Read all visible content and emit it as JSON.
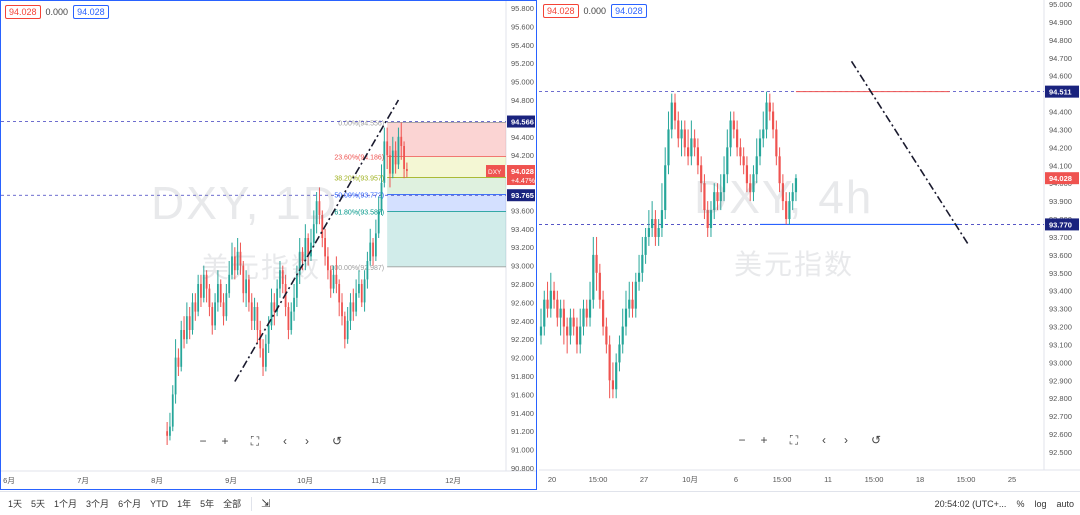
{
  "left": {
    "legend": {
      "open": "94.028",
      "change": "0.000",
      "close": "94.028"
    },
    "watermark": {
      "symbol": "DXY, 1D",
      "name": "美元指数"
    },
    "yaxis": {
      "labels": [
        "95.800",
        "95.600",
        "95.400",
        "95.200",
        "95.000",
        "94.800",
        "94.600",
        "94.400",
        "94.200",
        "94.000",
        "93.800",
        "93.600",
        "93.400",
        "93.200",
        "93.000",
        "92.800",
        "92.600",
        "92.400",
        "92.200",
        "92.000",
        "91.800",
        "91.600",
        "91.400",
        "91.200",
        "91.000",
        "90.800"
      ],
      "min": 90.8,
      "max": 95.8
    },
    "xaxis": {
      "labels": [
        "6月",
        "7月",
        "8月",
        "9月",
        "10月",
        "11月",
        "12月"
      ]
    },
    "price_tags": {
      "upper": "94.566",
      "current_symbol": "DXY",
      "current": "94.028",
      "current_change": "+4.47%",
      "lower": "93.765"
    },
    "fib": [
      {
        "label": "0.00%(94.556)",
        "price": 94.556
      },
      {
        "label": "23.60%(94.186)",
        "price": 94.186
      },
      {
        "label": "38.20%(93.957)",
        "price": 93.957
      },
      {
        "label": "50.00%(93.772)",
        "price": 93.772
      },
      {
        "label": "61.80%(93.587)",
        "price": 93.587
      },
      {
        "label": "100.00%(92.987)",
        "price": 92.987
      }
    ],
    "hlines": [
      94.566,
      93.765
    ],
    "trendline": {
      "from": {
        "i": 68,
        "p": 91.74
      },
      "to": {
        "i": 126,
        "p": 94.8
      }
    },
    "ohlc": [
      [
        91.2,
        91.15,
        91.3,
        91.05
      ],
      [
        91.15,
        91.25,
        91.4,
        91.1
      ],
      [
        91.25,
        91.6,
        91.7,
        91.2
      ],
      [
        91.6,
        92.0,
        92.2,
        91.5
      ],
      [
        92.0,
        91.9,
        92.1,
        91.8
      ],
      [
        91.9,
        92.3,
        92.4,
        91.85
      ],
      [
        92.3,
        92.2,
        92.45,
        92.1
      ],
      [
        92.2,
        92.45,
        92.6,
        92.15
      ],
      [
        92.45,
        92.3,
        92.55,
        92.2
      ],
      [
        92.3,
        92.6,
        92.7,
        92.25
      ],
      [
        92.6,
        92.5,
        92.7,
        92.4
      ],
      [
        92.5,
        92.8,
        92.9,
        92.45
      ],
      [
        92.8,
        92.65,
        92.9,
        92.55
      ],
      [
        92.65,
        92.9,
        93.0,
        92.6
      ],
      [
        92.9,
        92.75,
        92.95,
        92.6
      ],
      [
        92.75,
        92.55,
        92.8,
        92.45
      ],
      [
        92.55,
        92.35,
        92.6,
        92.25
      ],
      [
        92.35,
        92.6,
        92.7,
        92.3
      ],
      [
        92.6,
        92.8,
        92.95,
        92.5
      ],
      [
        92.8,
        92.6,
        92.85,
        92.55
      ],
      [
        92.6,
        92.45,
        92.7,
        92.35
      ],
      [
        92.45,
        92.7,
        92.8,
        92.4
      ],
      [
        92.7,
        92.9,
        93.05,
        92.65
      ],
      [
        92.9,
        93.1,
        93.25,
        92.85
      ],
      [
        93.1,
        92.95,
        93.2,
        92.85
      ],
      [
        92.95,
        93.15,
        93.3,
        92.9
      ],
      [
        93.15,
        93.0,
        93.25,
        92.9
      ],
      [
        93.0,
        92.7,
        93.05,
        92.6
      ],
      [
        92.7,
        92.85,
        92.95,
        92.55
      ],
      [
        92.85,
        92.6,
        92.9,
        92.5
      ],
      [
        92.6,
        92.4,
        92.7,
        92.3
      ],
      [
        92.4,
        92.55,
        92.65,
        92.3
      ],
      [
        92.55,
        92.3,
        92.6,
        92.15
      ],
      [
        92.3,
        92.1,
        92.4,
        92.0
      ],
      [
        92.1,
        91.9,
        92.2,
        91.8
      ],
      [
        91.9,
        92.15,
        92.25,
        91.85
      ],
      [
        92.15,
        92.35,
        92.45,
        92.05
      ],
      [
        92.35,
        92.6,
        92.75,
        92.3
      ],
      [
        92.6,
        92.5,
        92.7,
        92.35
      ],
      [
        92.5,
        92.75,
        92.85,
        92.45
      ],
      [
        92.75,
        92.95,
        93.05,
        92.65
      ],
      [
        92.95,
        92.8,
        93.0,
        92.7
      ],
      [
        92.8,
        92.55,
        92.9,
        92.45
      ],
      [
        92.55,
        92.3,
        92.6,
        92.2
      ],
      [
        92.3,
        92.5,
        92.6,
        92.25
      ],
      [
        92.5,
        92.65,
        92.8,
        92.4
      ],
      [
        92.65,
        92.9,
        93.0,
        92.55
      ],
      [
        92.9,
        93.15,
        93.3,
        92.8
      ],
      [
        93.15,
        93.05,
        93.2,
        92.95
      ],
      [
        93.05,
        93.3,
        93.45,
        92.95
      ],
      [
        93.3,
        93.1,
        93.35,
        93.0
      ],
      [
        93.1,
        93.25,
        93.4,
        93.05
      ],
      [
        93.25,
        93.45,
        93.6,
        93.2
      ],
      [
        93.45,
        93.7,
        93.8,
        93.35
      ],
      [
        93.7,
        93.55,
        93.85,
        93.45
      ],
      [
        93.55,
        93.3,
        93.6,
        93.2
      ],
      [
        93.3,
        93.1,
        93.4,
        93.0
      ],
      [
        93.1,
        92.95,
        93.2,
        92.85
      ],
      [
        92.95,
        92.75,
        93.0,
        92.65
      ],
      [
        92.75,
        92.9,
        93.0,
        92.7
      ],
      [
        92.9,
        92.8,
        93.1,
        92.7
      ],
      [
        92.8,
        92.6,
        92.85,
        92.45
      ],
      [
        92.6,
        92.45,
        92.7,
        92.35
      ],
      [
        92.45,
        92.2,
        92.5,
        92.1
      ],
      [
        92.2,
        92.4,
        92.55,
        92.15
      ],
      [
        92.4,
        92.6,
        92.7,
        92.3
      ],
      [
        92.6,
        92.5,
        92.75,
        92.4
      ],
      [
        92.5,
        92.7,
        92.85,
        92.45
      ],
      [
        92.7,
        92.8,
        92.95,
        92.65
      ],
      [
        92.8,
        92.6,
        92.85,
        92.55
      ],
      [
        92.6,
        92.85,
        92.95,
        92.5
      ],
      [
        92.85,
        93.05,
        93.15,
        92.75
      ],
      [
        93.05,
        93.25,
        93.4,
        93.0
      ],
      [
        93.25,
        93.1,
        93.3,
        93.0
      ],
      [
        93.1,
        93.35,
        93.5,
        93.05
      ],
      [
        93.35,
        93.6,
        93.75,
        93.3
      ],
      [
        93.6,
        93.9,
        94.1,
        93.55
      ],
      [
        93.9,
        94.35,
        94.5,
        93.85
      ],
      [
        94.35,
        94.2,
        94.5,
        94.05
      ],
      [
        94.2,
        94.0,
        94.3,
        93.85
      ],
      [
        94.0,
        94.25,
        94.4,
        93.95
      ],
      [
        94.25,
        94.1,
        94.35,
        94.0
      ],
      [
        94.1,
        94.4,
        94.5,
        94.05
      ],
      [
        94.4,
        94.3,
        94.556,
        94.15
      ],
      [
        94.3,
        94.05,
        94.35,
        93.95
      ],
      [
        94.05,
        94.028,
        94.12,
        93.96
      ]
    ]
  },
  "right": {
    "legend": {
      "open": "94.028",
      "change": "0.000",
      "close": "94.028"
    },
    "watermark": {
      "symbol": "DXY, 4h",
      "name": "美元指数"
    },
    "yaxis": {
      "labels": [
        "95.000",
        "94.900",
        "94.800",
        "94.700",
        "94.600",
        "94.500",
        "94.400",
        "94.300",
        "94.200",
        "94.100",
        "94.000",
        "93.900",
        "93.800",
        "93.700",
        "93.600",
        "93.500",
        "93.400",
        "93.300",
        "93.200",
        "93.100",
        "93.000",
        "92.900",
        "92.800",
        "92.700",
        "92.600",
        "92.500"
      ],
      "min": 92.5,
      "max": 95.0
    },
    "xaxis": {
      "labels": [
        "20",
        "15:00",
        "27",
        "10月",
        "6",
        "15:00",
        "11",
        "15:00",
        "18",
        "15:00",
        "25"
      ]
    },
    "price_tags": {
      "upper": "94.511",
      "current": "94.028",
      "lower": "93.770"
    },
    "hlines": [
      94.511,
      93.77
    ],
    "red_segment": {
      "from": {
        "i": 78,
        "p": 94.511
      },
      "to": {
        "i": 125,
        "p": 94.511
      }
    },
    "blue_segment": {
      "from": {
        "i": 67,
        "p": 93.77
      },
      "to": {
        "i": 128,
        "p": 93.77
      }
    },
    "trendline": {
      "from": {
        "i": 95,
        "p": 94.68
      },
      "to": {
        "i": 131,
        "p": 93.65
      }
    },
    "ohlc": [
      [
        93.15,
        93.2,
        93.3,
        93.1
      ],
      [
        93.2,
        93.35,
        93.4,
        93.15
      ],
      [
        93.35,
        93.3,
        93.45,
        93.25
      ],
      [
        93.3,
        93.4,
        93.5,
        93.25
      ],
      [
        93.4,
        93.35,
        93.45,
        93.3
      ],
      [
        93.35,
        93.25,
        93.4,
        93.2
      ],
      [
        93.25,
        93.3,
        93.35,
        93.15
      ],
      [
        93.3,
        93.2,
        93.35,
        93.1
      ],
      [
        93.2,
        93.15,
        93.25,
        93.05
      ],
      [
        93.15,
        93.25,
        93.3,
        93.1
      ],
      [
        93.25,
        93.2,
        93.3,
        93.15
      ],
      [
        93.2,
        93.1,
        93.25,
        93.05
      ],
      [
        93.1,
        93.2,
        93.3,
        93.05
      ],
      [
        93.2,
        93.3,
        93.35,
        93.15
      ],
      [
        93.3,
        93.25,
        93.35,
        93.2
      ],
      [
        93.25,
        93.35,
        93.45,
        93.2
      ],
      [
        93.35,
        93.6,
        93.7,
        93.3
      ],
      [
        93.6,
        93.5,
        93.7,
        93.4
      ],
      [
        93.5,
        93.35,
        93.55,
        93.3
      ],
      [
        93.35,
        93.2,
        93.4,
        93.15
      ],
      [
        93.2,
        93.1,
        93.25,
        93.05
      ],
      [
        93.1,
        92.9,
        93.15,
        92.8
      ],
      [
        92.9,
        92.85,
        93.0,
        92.8
      ],
      [
        92.85,
        93.0,
        93.05,
        92.8
      ],
      [
        93.0,
        93.1,
        93.15,
        92.95
      ],
      [
        93.1,
        93.2,
        93.3,
        93.05
      ],
      [
        93.2,
        93.3,
        93.4,
        93.15
      ],
      [
        93.3,
        93.35,
        93.45,
        93.25
      ],
      [
        93.35,
        93.3,
        93.45,
        93.25
      ],
      [
        93.3,
        93.45,
        93.5,
        93.25
      ],
      [
        93.45,
        93.5,
        93.6,
        93.4
      ],
      [
        93.5,
        93.6,
        93.7,
        93.45
      ],
      [
        93.6,
        93.7,
        93.75,
        93.55
      ],
      [
        93.7,
        93.75,
        93.85,
        93.65
      ],
      [
        93.75,
        93.8,
        93.9,
        93.7
      ],
      [
        93.8,
        93.7,
        93.85,
        93.65
      ],
      [
        93.7,
        93.75,
        93.8,
        93.65
      ],
      [
        93.75,
        93.85,
        94.0,
        93.7
      ],
      [
        93.85,
        94.1,
        94.2,
        93.8
      ],
      [
        94.1,
        94.3,
        94.4,
        94.05
      ],
      [
        94.3,
        94.45,
        94.5,
        94.25
      ],
      [
        94.45,
        94.35,
        94.5,
        94.3
      ],
      [
        94.35,
        94.25,
        94.4,
        94.2
      ],
      [
        94.25,
        94.3,
        94.35,
        94.15
      ],
      [
        94.3,
        94.2,
        94.35,
        94.15
      ],
      [
        94.2,
        94.15,
        94.3,
        94.1
      ],
      [
        94.15,
        94.25,
        94.35,
        94.1
      ],
      [
        94.25,
        94.2,
        94.3,
        94.15
      ],
      [
        94.2,
        94.1,
        94.25,
        94.05
      ],
      [
        94.1,
        94.0,
        94.15,
        93.95
      ],
      [
        94.0,
        93.85,
        94.05,
        93.8
      ],
      [
        93.85,
        93.75,
        93.9,
        93.7
      ],
      [
        93.75,
        93.85,
        93.9,
        93.7
      ],
      [
        93.85,
        93.95,
        94.0,
        93.8
      ],
      [
        93.95,
        93.9,
        94.0,
        93.85
      ],
      [
        93.9,
        93.95,
        94.05,
        93.85
      ],
      [
        93.95,
        94.05,
        94.15,
        93.9
      ],
      [
        94.05,
        94.2,
        94.3,
        94.0
      ],
      [
        94.2,
        94.35,
        94.4,
        94.15
      ],
      [
        94.35,
        94.3,
        94.4,
        94.25
      ],
      [
        94.3,
        94.2,
        94.35,
        94.15
      ],
      [
        94.2,
        94.15,
        94.25,
        94.1
      ],
      [
        94.15,
        94.1,
        94.2,
        94.05
      ],
      [
        94.1,
        94.0,
        94.15,
        93.95
      ],
      [
        94.0,
        93.95,
        94.05,
        93.9
      ],
      [
        93.95,
        94.05,
        94.1,
        93.9
      ],
      [
        94.05,
        94.15,
        94.25,
        94.0
      ],
      [
        94.15,
        94.25,
        94.3,
        94.1
      ],
      [
        94.25,
        94.3,
        94.4,
        94.2
      ],
      [
        94.3,
        94.45,
        94.511,
        94.25
      ],
      [
        94.45,
        94.4,
        94.5,
        94.35
      ],
      [
        94.4,
        94.3,
        94.45,
        94.25
      ],
      [
        94.3,
        94.15,
        94.35,
        94.1
      ],
      [
        94.15,
        94.0,
        94.2,
        93.95
      ],
      [
        94.0,
        93.9,
        94.05,
        93.85
      ],
      [
        93.9,
        93.8,
        93.95,
        93.77
      ],
      [
        93.8,
        93.9,
        93.95,
        93.77
      ],
      [
        93.9,
        93.95,
        94.0,
        93.85
      ],
      [
        93.95,
        94.028,
        94.05,
        93.9
      ]
    ]
  },
  "bottom_bar": {
    "ranges": [
      "1天",
      "5天",
      "1个月",
      "3个月",
      "6个月",
      "YTD",
      "1年",
      "5年",
      "全部"
    ],
    "time": "20:54:02 (UTC+...",
    "percent": "%",
    "log": "log",
    "auto": "auto"
  },
  "colors": {
    "up": "#26a69a",
    "down": "#ef5350",
    "accent": "#2962ff",
    "dashed": "#3f3fbf"
  }
}
